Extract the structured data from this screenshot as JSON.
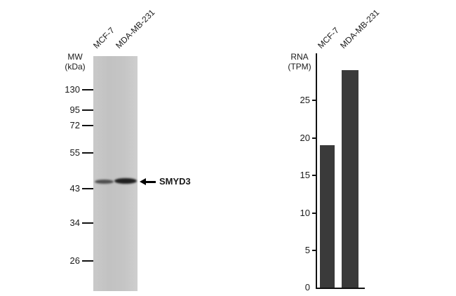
{
  "figure": {
    "description_colors": {
      "bar_color": "#3a3a3a",
      "blot_background": "#c6c6c6",
      "band_color": "#1f1f1f"
    }
  },
  "blot": {
    "mw_line1": "MW",
    "mw_line2": "(kDa)",
    "markers": [
      {
        "label": "130"
      },
      {
        "label": "95"
      },
      {
        "label": "72"
      },
      {
        "label": "55"
      },
      {
        "label": "43"
      },
      {
        "label": "34"
      },
      {
        "label": "26"
      }
    ],
    "lanes": [
      "MCF-7",
      "MDA-MB-231"
    ],
    "band_label": "SMYD3"
  },
  "chart": {
    "ylabel_line1": "RNA",
    "ylabel_line2": "(TPM)",
    "ytick_labels": [
      "25",
      "20",
      "15",
      "10",
      "5",
      "0"
    ]
  },
  "chart_data": {
    "type": "bar",
    "categories": [
      "MCF-7",
      "MDA-MB-231"
    ],
    "values": [
      19,
      29
    ],
    "title": "",
    "xlabel": "",
    "ylabel": "RNA (TPM)",
    "ylim": [
      0,
      31
    ],
    "yticks": [
      0,
      5,
      10,
      15,
      20,
      25
    ],
    "grid": false,
    "legend": false,
    "bar_color": "#3a3a3a"
  }
}
